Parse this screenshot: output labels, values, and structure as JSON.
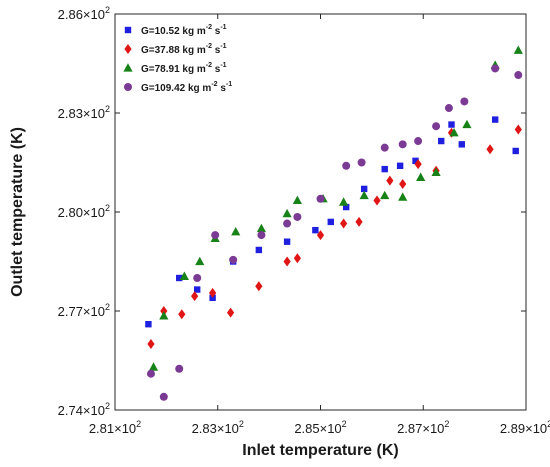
{
  "chart_data": {
    "type": "scatter",
    "xlabel": "Inlet temperature (K)",
    "ylabel": "Outlet temperature (K)",
    "xlim": [
      281,
      289
    ],
    "ylim": [
      274,
      286
    ],
    "x_ticks": [
      {
        "value": 281,
        "mant": "2.81",
        "exp": "2"
      },
      {
        "value": 283,
        "mant": "2.83",
        "exp": "2"
      },
      {
        "value": 285,
        "mant": "2.85",
        "exp": "2"
      },
      {
        "value": 287,
        "mant": "2.87",
        "exp": "2"
      },
      {
        "value": 289,
        "mant": "2.89",
        "exp": "2"
      }
    ],
    "y_ticks": [
      {
        "value": 274,
        "mant": "2.74",
        "exp": "2"
      },
      {
        "value": 277,
        "mant": "2.77",
        "exp": "2"
      },
      {
        "value": 280,
        "mant": "2.80",
        "exp": "2"
      },
      {
        "value": 283,
        "mant": "2.83",
        "exp": "2"
      },
      {
        "value": 286,
        "mant": "2.86",
        "exp": "2"
      }
    ],
    "tick_times": "×10",
    "legend_position": "top-left",
    "grid": false,
    "series": [
      {
        "name": "G=10.52 kg m-2 s-1",
        "legend_main": "G=10.52 kg m",
        "marker": "square",
        "color": "#1f1fe0",
        "points": [
          [
            281.65,
            276.6
          ],
          [
            282.25,
            278.0
          ],
          [
            282.6,
            277.65
          ],
          [
            282.9,
            277.4
          ],
          [
            283.3,
            278.5
          ],
          [
            283.8,
            278.85
          ],
          [
            284.35,
            279.1
          ],
          [
            284.9,
            279.45
          ],
          [
            285.2,
            279.7
          ],
          [
            285.5,
            280.15
          ],
          [
            285.85,
            280.7
          ],
          [
            286.25,
            281.3
          ],
          [
            286.55,
            281.4
          ],
          [
            286.85,
            281.55
          ],
          [
            287.35,
            282.15
          ],
          [
            287.55,
            282.65
          ],
          [
            287.75,
            282.05
          ],
          [
            288.4,
            282.8
          ],
          [
            288.8,
            281.85
          ]
        ]
      },
      {
        "name": "G=37.88 kg m-2 s-1",
        "legend_main": "G=37.88 kg m",
        "marker": "diamond",
        "color": "#e01515",
        "points": [
          [
            281.7,
            276.0
          ],
          [
            281.95,
            277.0
          ],
          [
            282.3,
            276.9
          ],
          [
            282.55,
            277.45
          ],
          [
            282.9,
            277.55
          ],
          [
            283.25,
            276.95
          ],
          [
            283.8,
            277.75
          ],
          [
            284.35,
            278.5
          ],
          [
            284.55,
            278.6
          ],
          [
            285.0,
            279.3
          ],
          [
            285.45,
            279.65
          ],
          [
            285.75,
            279.7
          ],
          [
            286.1,
            280.35
          ],
          [
            286.35,
            280.95
          ],
          [
            286.6,
            280.85
          ],
          [
            286.9,
            281.45
          ],
          [
            287.25,
            281.25
          ],
          [
            287.55,
            282.4
          ],
          [
            288.3,
            281.9
          ],
          [
            288.85,
            282.5
          ]
        ]
      },
      {
        "name": "G=78.91 kg m-2 s-1",
        "legend_main": "G=78.91 kg m",
        "marker": "triangle",
        "color": "#178217",
        "points": [
          [
            281.75,
            275.3
          ],
          [
            281.95,
            276.85
          ],
          [
            282.35,
            278.05
          ],
          [
            282.65,
            278.5
          ],
          [
            282.95,
            279.2
          ],
          [
            283.35,
            279.4
          ],
          [
            283.85,
            279.5
          ],
          [
            284.35,
            279.95
          ],
          [
            284.55,
            280.35
          ],
          [
            285.05,
            280.4
          ],
          [
            285.45,
            280.3
          ],
          [
            285.85,
            280.5
          ],
          [
            286.25,
            280.5
          ],
          [
            286.6,
            280.45
          ],
          [
            286.95,
            281.05
          ],
          [
            287.25,
            281.2
          ],
          [
            287.6,
            282.4
          ],
          [
            287.85,
            282.65
          ],
          [
            288.4,
            284.45
          ],
          [
            288.85,
            284.9
          ]
        ]
      },
      {
        "name": "G=109.42 kg m-2 s-1",
        "legend_main": "G=109.42 kg m",
        "marker": "circle",
        "color": "#7b3a94",
        "points": [
          [
            281.7,
            275.1
          ],
          [
            281.95,
            274.4
          ],
          [
            282.25,
            275.25
          ],
          [
            282.6,
            278.0
          ],
          [
            282.95,
            279.3
          ],
          [
            283.3,
            278.55
          ],
          [
            283.85,
            279.3
          ],
          [
            284.35,
            279.65
          ],
          [
            284.55,
            279.85
          ],
          [
            285.0,
            280.4
          ],
          [
            285.5,
            281.4
          ],
          [
            285.8,
            281.5
          ],
          [
            286.25,
            281.95
          ],
          [
            286.6,
            282.05
          ],
          [
            286.9,
            282.15
          ],
          [
            287.25,
            282.6
          ],
          [
            287.5,
            283.15
          ],
          [
            287.8,
            283.35
          ],
          [
            288.4,
            284.35
          ],
          [
            288.85,
            284.15
          ]
        ]
      }
    ]
  },
  "legend": {
    "unit_exp_m": "-2",
    "unit_s": " s",
    "unit_exp_s": "-1"
  }
}
